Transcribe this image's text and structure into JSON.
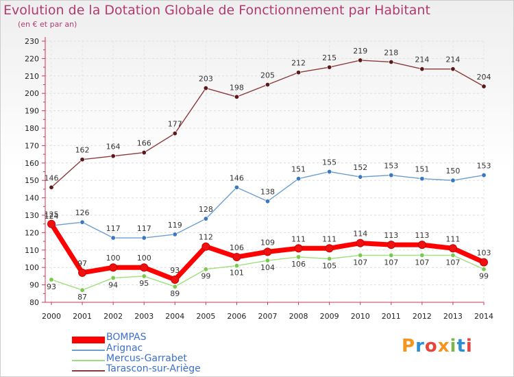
{
  "header": {
    "title": "Evolution de la Dotation Globale de Fonctionnement par Habitant",
    "subtitle": "(en € et par an)"
  },
  "logo": {
    "text": "Proxiti",
    "colors": [
      "#f7941d",
      "#2b8fd6",
      "#e8443a",
      "#f7941d",
      "#7ab648",
      "#2b8fd6",
      "#e8443a"
    ]
  },
  "chart_data": {
    "type": "line",
    "title": "Evolution de la Dotation Globale de Fonctionnement par Habitant",
    "subtitle": "(en € et par an)",
    "xlabel": "",
    "ylabel": "",
    "ylim": [
      80,
      230
    ],
    "yticks": [
      80,
      90,
      100,
      110,
      120,
      130,
      140,
      150,
      160,
      170,
      180,
      190,
      200,
      210,
      220,
      230
    ],
    "grid": true,
    "legend_position": "bottom-left",
    "categories": [
      "2000",
      "2001",
      "2002",
      "2003",
      "2004",
      "2005",
      "2006",
      "2007",
      "2008",
      "2009",
      "2010",
      "2011",
      "2012",
      "2013",
      "2014"
    ],
    "series": [
      {
        "name": "Tarascon-sur-Ariège",
        "color": "#8b3a3a",
        "marker": "#5a1a1a",
        "values": [
          146,
          162,
          164,
          166,
          177,
          203,
          198,
          205,
          212,
          215,
          219,
          218,
          214,
          214,
          204
        ]
      },
      {
        "name": "Arignac",
        "color": "#6a9fd0",
        "marker": "#3a78c0",
        "values": [
          124,
          126,
          117,
          117,
          119,
          128,
          146,
          138,
          151,
          155,
          152,
          153,
          151,
          150,
          153
        ]
      },
      {
        "name": "Mercus-Garrabet",
        "color": "#9be07a",
        "marker": "#7ac84e",
        "values": [
          93,
          87,
          94,
          95,
          89,
          99,
          101,
          104,
          106,
          105,
          107,
          107,
          107,
          107,
          99
        ]
      },
      {
        "name": "BOMPAS",
        "color": "#ff0000",
        "marker": "#ee1111",
        "values": [
          125,
          97,
          100,
          100,
          93,
          112,
          106,
          109,
          111,
          111,
          114,
          113,
          113,
          111,
          103
        ]
      }
    ]
  },
  "legend": [
    {
      "name": "BOMPAS",
      "color": "#ff0000"
    },
    {
      "name": "Arignac",
      "color": "#6a9fd0"
    },
    {
      "name": "Mercus-Garrabet",
      "color": "#9be07a"
    },
    {
      "name": "Tarascon-sur-Ariège",
      "color": "#8b3a3a"
    }
  ]
}
